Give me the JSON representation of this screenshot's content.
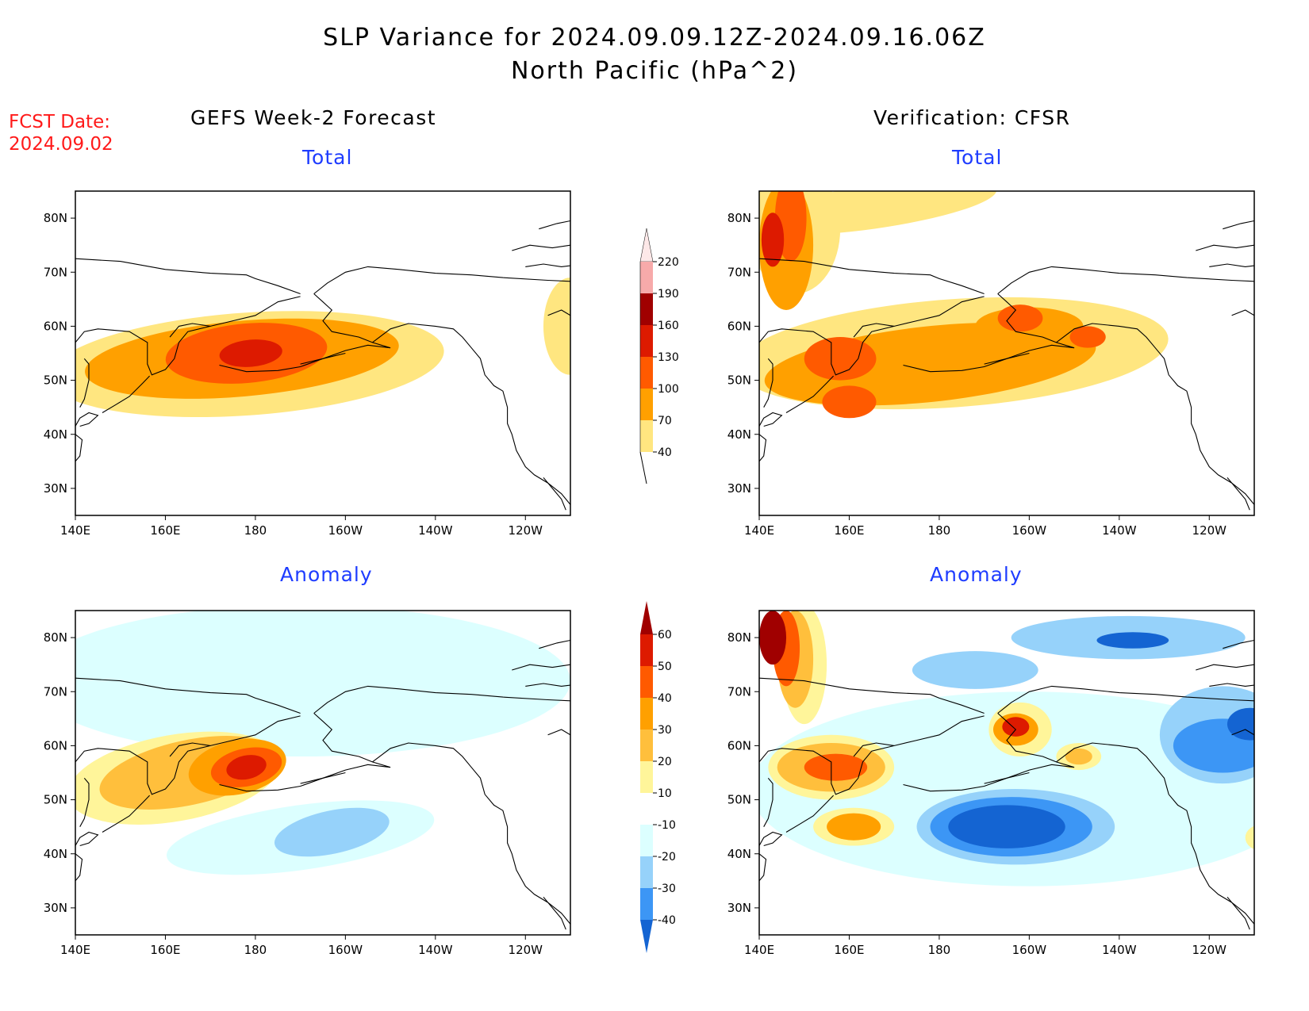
{
  "header": {
    "title": "SLP Variance for 2024.09.09.12Z-2024.09.16.06Z",
    "subtitle": "North Pacific (hPa^2)",
    "fcst_label": "FCST Date:",
    "fcst_date": "2024.09.02"
  },
  "columns": {
    "left": "GEFS Week-2 Forecast",
    "right": "Verification: CFSR"
  },
  "panels": {
    "total": "Total",
    "anomaly": "Anomaly"
  },
  "axes": {
    "lat_labels": [
      "80N",
      "70N",
      "60N",
      "50N",
      "40N",
      "30N"
    ],
    "lon_labels": [
      "140E",
      "160E",
      "180",
      "160W",
      "140W",
      "120W"
    ]
  },
  "colorbar_total": {
    "levels": [
      "220",
      "190",
      "160",
      "130",
      "100",
      "70",
      "40"
    ],
    "colors": [
      "#f7aaaa",
      "#a00000",
      "#dd1a00",
      "#ff5a00",
      "#ffa000",
      "#ffe680"
    ]
  },
  "colorbar_anomaly": {
    "levels": [
      "60",
      "50",
      "40",
      "30",
      "20",
      "10",
      "-10",
      "-20",
      "-30",
      "-40"
    ],
    "colors": [
      "#a00000",
      "#dd1a00",
      "#ff5a00",
      "#ffa000",
      "#ffbf3c",
      "#fff59a",
      "#ffffff",
      "#dcffff",
      "#96d2fa",
      "#3c96f5",
      "#1464d2"
    ]
  },
  "fields": {
    "gefs_total": [
      {
        "color": "#ffe680",
        "cx": 178,
        "cy": 53,
        "rx": 44,
        "ry": 9.5,
        "rot": -4
      },
      {
        "color": "#ffa000",
        "cx": 177,
        "cy": 54,
        "rx": 35,
        "ry": 7,
        "rot": -5
      },
      {
        "color": "#ff5a00",
        "cx": 178,
        "cy": 55,
        "rx": 18,
        "ry": 5.5,
        "rot": -5
      },
      {
        "color": "#dd1a00",
        "cx": 179,
        "cy": 55,
        "rx": 7,
        "ry": 2.5,
        "rot": -5
      },
      {
        "color": "#ffe680",
        "cx": 250,
        "cy": 60,
        "rx": 6,
        "ry": 9,
        "rot": 0
      }
    ],
    "cfsr_total": [
      {
        "color": "#ffe680",
        "cx": 183,
        "cy": 55,
        "rx": 48,
        "ry": 10,
        "rot": -4
      },
      {
        "color": "#ffe680",
        "cx": 148,
        "cy": 78,
        "rx": 10,
        "ry": 12,
        "rot": 0
      },
      {
        "color": "#ffe680",
        "cx": 165,
        "cy": 82,
        "rx": 28,
        "ry": 4,
        "rot": -8
      },
      {
        "color": "#ffa000",
        "cx": 146,
        "cy": 75,
        "rx": 6,
        "ry": 12,
        "rot": 0
      },
      {
        "color": "#ffa000",
        "cx": 178,
        "cy": 53,
        "rx": 37,
        "ry": 7,
        "rot": -6
      },
      {
        "color": "#ffa000",
        "cx": 200,
        "cy": 60,
        "rx": 12,
        "ry": 3.5,
        "rot": 0
      },
      {
        "color": "#ff5a00",
        "cx": 158,
        "cy": 54,
        "rx": 8,
        "ry": 4,
        "rot": 0
      },
      {
        "color": "#ff5a00",
        "cx": 160,
        "cy": 46,
        "rx": 6,
        "ry": 3,
        "rot": 0
      },
      {
        "color": "#ff5a00",
        "cx": 198,
        "cy": 61.5,
        "rx": 5,
        "ry": 2.5,
        "rot": 0
      },
      {
        "color": "#ff5a00",
        "cx": 213,
        "cy": 58,
        "rx": 4,
        "ry": 2,
        "rot": 0
      },
      {
        "color": "#ff5a00",
        "cx": 147,
        "cy": 80,
        "rx": 3.5,
        "ry": 8,
        "rot": 0
      },
      {
        "color": "#dd1a00",
        "cx": 143,
        "cy": 76,
        "rx": 2.5,
        "ry": 5,
        "rot": 0
      }
    ],
    "gefs_anomaly": [
      {
        "color": "#dcffff",
        "cx": 190,
        "cy": 72,
        "rx": 60,
        "ry": 14,
        "rot": 0
      },
      {
        "color": "#dcffff",
        "cx": 190,
        "cy": 43,
        "rx": 30,
        "ry": 6,
        "rot": -8
      },
      {
        "color": "#96d2fa",
        "cx": 197,
        "cy": 44,
        "rx": 13,
        "ry": 4,
        "rot": -12
      },
      {
        "color": "#fff59a",
        "cx": 162,
        "cy": 54,
        "rx": 24,
        "ry": 8,
        "rot": -10
      },
      {
        "color": "#ffbf3c",
        "cx": 165,
        "cy": 55,
        "rx": 20,
        "ry": 6,
        "rot": -12
      },
      {
        "color": "#ffa000",
        "cx": 176,
        "cy": 56,
        "rx": 11,
        "ry": 5,
        "rot": -12
      },
      {
        "color": "#ff5a00",
        "cx": 178,
        "cy": 56,
        "rx": 8,
        "ry": 3.5,
        "rot": -12
      },
      {
        "color": "#dd1a00",
        "cx": 178,
        "cy": 56,
        "rx": 4.5,
        "ry": 2.2,
        "rot": -12
      }
    ],
    "cfsr_anomaly": [
      {
        "color": "#dcffff",
        "cx": 200,
        "cy": 52,
        "rx": 62,
        "ry": 18,
        "rot": 0
      },
      {
        "color": "#96d2fa",
        "cx": 222,
        "cy": 80,
        "rx": 26,
        "ry": 4,
        "rot": 0
      },
      {
        "color": "#1464d2",
        "cx": 223,
        "cy": 79.5,
        "rx": 8,
        "ry": 1.5,
        "rot": 0
      },
      {
        "color": "#96d2fa",
        "cx": 188,
        "cy": 74,
        "rx": 14,
        "ry": 3.5,
        "rot": 0
      },
      {
        "color": "#96d2fa",
        "cx": 243,
        "cy": 62,
        "rx": 14,
        "ry": 9,
        "rot": 0
      },
      {
        "color": "#3c96f5",
        "cx": 243,
        "cy": 60,
        "rx": 11,
        "ry": 5,
        "rot": 0
      },
      {
        "color": "#1464d2",
        "cx": 249,
        "cy": 64,
        "rx": 5,
        "ry": 3,
        "rot": 0
      },
      {
        "color": "#96d2fa",
        "cx": 197,
        "cy": 45,
        "rx": 22,
        "ry": 7,
        "rot": 0
      },
      {
        "color": "#3c96f5",
        "cx": 196,
        "cy": 45,
        "rx": 18,
        "ry": 5.5,
        "rot": 0
      },
      {
        "color": "#1464d2",
        "cx": 195,
        "cy": 45,
        "rx": 13,
        "ry": 4,
        "rot": 0
      },
      {
        "color": "#fff59a",
        "cx": 150,
        "cy": 75,
        "rx": 5,
        "ry": 11,
        "rot": 0
      },
      {
        "color": "#ffbf3c",
        "cx": 148,
        "cy": 76,
        "rx": 4,
        "ry": 9,
        "rot": 0
      },
      {
        "color": "#ff5a00",
        "cx": 146,
        "cy": 78,
        "rx": 3,
        "ry": 7,
        "rot": 0
      },
      {
        "color": "#a00000",
        "cx": 143,
        "cy": 80,
        "rx": 3,
        "ry": 5,
        "rot": 0
      },
      {
        "color": "#fff59a",
        "cx": 156,
        "cy": 56,
        "rx": 14,
        "ry": 6,
        "rot": 0
      },
      {
        "color": "#ffbf3c",
        "cx": 156,
        "cy": 56,
        "rx": 12,
        "ry": 4.5,
        "rot": 0
      },
      {
        "color": "#ff5a00",
        "cx": 157,
        "cy": 56,
        "rx": 7,
        "ry": 2.5,
        "rot": 0
      },
      {
        "color": "#fff59a",
        "cx": 161,
        "cy": 45,
        "rx": 9,
        "ry": 3.5,
        "rot": 0
      },
      {
        "color": "#ffa000",
        "cx": 161,
        "cy": 45,
        "rx": 6,
        "ry": 2.5,
        "rot": 0
      },
      {
        "color": "#fff59a",
        "cx": 198,
        "cy": 63,
        "rx": 7,
        "ry": 5,
        "rot": 0
      },
      {
        "color": "#ffa000",
        "cx": 197,
        "cy": 63,
        "rx": 5,
        "ry": 3,
        "rot": 0
      },
      {
        "color": "#dd1a00",
        "cx": 197,
        "cy": 63.5,
        "rx": 3,
        "ry": 1.8,
        "rot": 0
      },
      {
        "color": "#fff59a",
        "cx": 211,
        "cy": 58,
        "rx": 5,
        "ry": 2.5,
        "rot": 0
      },
      {
        "color": "#ffbf3c",
        "cx": 211,
        "cy": 58,
        "rx": 3,
        "ry": 1.5,
        "rot": 0
      },
      {
        "color": "#fff59a",
        "cx": 252,
        "cy": 43,
        "rx": 4,
        "ry": 2.5,
        "rot": 0
      }
    ]
  }
}
